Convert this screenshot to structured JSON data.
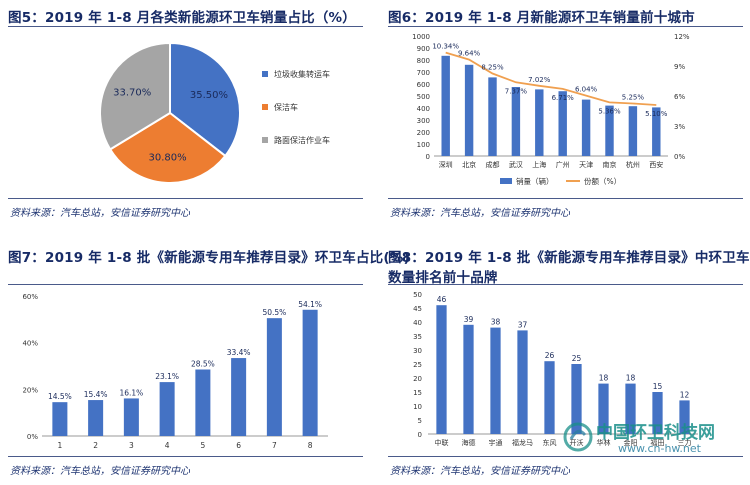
{
  "sources": {
    "text": "资料来源：汽车总站，安信证券研究中心"
  },
  "watermark": {
    "name": "中国环卫科技网",
    "url": "www.cn-hw.net"
  },
  "colors": {
    "title": "#172b66",
    "blue": "#4472c4",
    "orange": "#ed7d31",
    "gray": "#a5a5a5",
    "line_orange": "#f0a050"
  },
  "chart_data": [
    {
      "id": "fig5",
      "type": "pie",
      "title": "图5：2019 年 1-8 月各类新能源环卫车销量占比（%）",
      "labels": [
        "垃圾收集转运车",
        "保洁车",
        "路面保洁作业车"
      ],
      "legend_labels": [
        "垃圾收集转运车",
        "保洁车",
        "路面保洁作业车"
      ],
      "values": [
        35.5,
        30.8,
        33.7
      ],
      "value_labels": [
        "35.50%",
        "30.80%",
        "33.70%"
      ],
      "colors": [
        "#4472c4",
        "#ed7d31",
        "#a5a5a5"
      ],
      "legend_position": "right"
    },
    {
      "id": "fig6",
      "type": "bar",
      "title": "图6：2019 年 1-8 月新能源环卫车销量前十城市",
      "categories": [
        "深圳",
        "北京",
        "成都",
        "武汉",
        "上海",
        "广州",
        "天津",
        "南京",
        "杭州",
        "西安"
      ],
      "series": [
        {
          "name": "销量（辆）",
          "type": "bar",
          "values": [
            835,
            760,
            655,
            575,
            555,
            540,
            470,
            420,
            415,
            405
          ]
        },
        {
          "name": "份额（%）",
          "type": "line",
          "axis": "right",
          "values": [
            10.34,
            9.64,
            8.25,
            7.37,
            7.02,
            6.71,
            6.04,
            5.36,
            5.25,
            5.1
          ],
          "labels": [
            "10.34%",
            "9.64%",
            "8.25%",
            "7.37%",
            "7.02%",
            "6.71%",
            "6.04%",
            "5.36%",
            "5.25%",
            "5.10%"
          ]
        }
      ],
      "ylim": [
        0,
        1000
      ],
      "yticks": [
        0,
        100,
        200,
        300,
        400,
        500,
        600,
        700,
        800,
        900,
        1000
      ],
      "y2lim": [
        0,
        12
      ],
      "y2ticks": [
        "0%",
        "3%",
        "6%",
        "9%",
        "12%"
      ],
      "legend_position": "bottom",
      "legend_labels": [
        "销量（辆）",
        "份额（%）"
      ]
    },
    {
      "id": "fig7",
      "type": "bar",
      "title": "图7：2019 年 1-8 批《新能源专用车推荐目录》环卫车占比(%)",
      "categories": [
        "1",
        "2",
        "3",
        "4",
        "5",
        "6",
        "7",
        "8"
      ],
      "values": [
        14.5,
        15.4,
        16.1,
        23.1,
        28.5,
        33.4,
        50.5,
        54.1
      ],
      "value_labels": [
        "14.5%",
        "15.4%",
        "16.1%",
        "23.1%",
        "28.5%",
        "33.4%",
        "50.5%",
        "54.1%"
      ],
      "ylim": [
        0,
        60
      ],
      "yticks": [
        "0%",
        "20%",
        "40%",
        "60%"
      ]
    },
    {
      "id": "fig8",
      "type": "bar",
      "title_line1": "图8：2019 年 1-8 批《新能源专用车推荐目录》中环卫车",
      "title_line2": "数量排名前十品牌",
      "categories": [
        "中联",
        "海德",
        "宇通",
        "福龙马",
        "东风",
        "开沃",
        "华林",
        "金阳",
        "福田",
        "三力"
      ],
      "values": [
        46,
        39,
        38,
        37,
        26,
        25,
        18,
        18,
        15,
        12
      ],
      "ylim": [
        0,
        50
      ],
      "yticks": [
        0,
        5,
        10,
        15,
        20,
        25,
        30,
        35,
        40,
        45,
        50
      ]
    }
  ]
}
